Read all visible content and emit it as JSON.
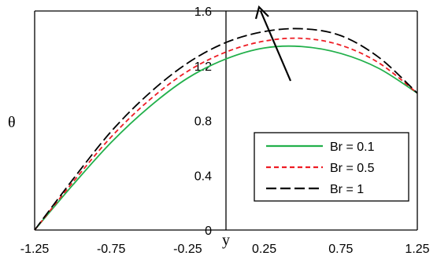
{
  "chart_data": {
    "type": "line",
    "title": "",
    "xlabel": "y",
    "ylabel": "θ",
    "xlim": [
      -1.25,
      1.25
    ],
    "ylim": [
      0,
      1.6
    ],
    "x_ticks": [
      "-1.25",
      "-0.75",
      "-0.25",
      "0.25",
      "0.75",
      "1.25"
    ],
    "y_ticks": [
      "0",
      "0.4",
      "0.8",
      "1.2",
      "1.6"
    ],
    "grid": false,
    "legend_position": "bottom-right",
    "annotation": "arrow pointing upward indicating increasing Br",
    "x": [
      -1.25,
      -1.0,
      -0.75,
      -0.5,
      -0.25,
      0.0,
      0.25,
      0.5,
      0.75,
      1.0,
      1.25
    ],
    "series": [
      {
        "name": "Br = 0.1",
        "color": "#22b04b",
        "dash": "solid",
        "values": [
          0.0,
          0.33,
          0.64,
          0.9,
          1.11,
          1.25,
          1.33,
          1.34,
          1.29,
          1.18,
          1.0
        ]
      },
      {
        "name": "Br = 0.5",
        "color": "#ee1c24",
        "dash": "short",
        "values": [
          0.0,
          0.35,
          0.68,
          0.95,
          1.16,
          1.3,
          1.38,
          1.4,
          1.35,
          1.22,
          1.0
        ]
      },
      {
        "name": "Br = 1",
        "color": "#000000",
        "dash": "long",
        "values": [
          0.0,
          0.37,
          0.72,
          1.0,
          1.22,
          1.37,
          1.45,
          1.47,
          1.42,
          1.26,
          1.0
        ]
      }
    ]
  }
}
